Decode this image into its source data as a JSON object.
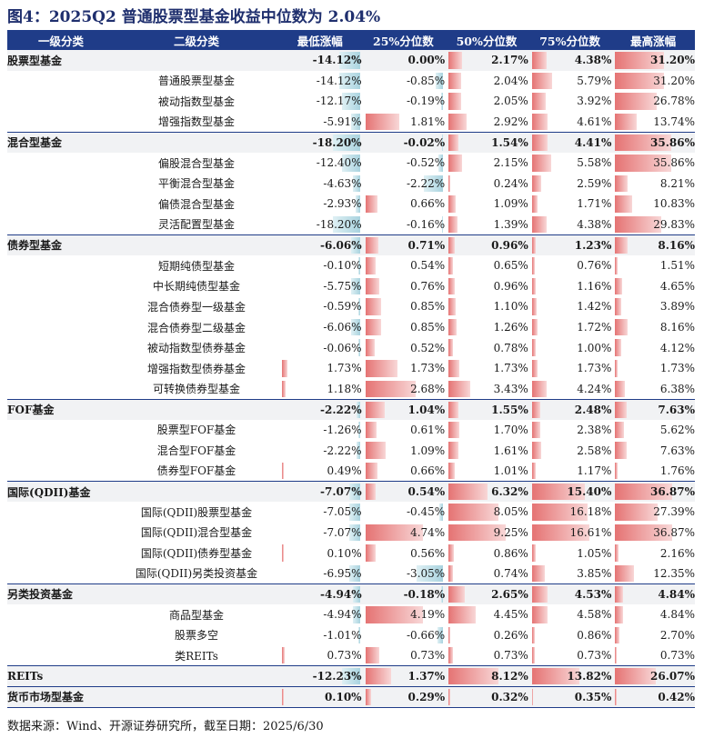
{
  "title": "图4：2025Q2 普通股票型基金收益中位数为 2.04%",
  "source": "数据来源：Wind、开源证券研究所，截至日期：2025/6/30",
  "colors": {
    "header_bg": "#1f3c88",
    "negative_bar": "#a9d3df",
    "positive_bar": "#e57373",
    "group_row_bg": "#f1f2f4"
  },
  "headers": [
    "一级分类",
    "二级分类",
    "最低涨幅",
    "25%分位数",
    "50%分位数",
    "75%分位数",
    "最高涨幅"
  ],
  "rows": [
    {
      "type": "group",
      "l1": "股票型基金",
      "l2": "",
      "values": [
        "-14.12%",
        "0.00%",
        "2.17%",
        "4.38%",
        "31.20%"
      ],
      "nums": [
        -14.12,
        0.0,
        2.17,
        4.38,
        31.2
      ]
    },
    {
      "type": "sub",
      "l1": "",
      "l2": "普通股票型基金",
      "values": [
        "-14.12%",
        "-0.85%",
        "2.04%",
        "5.79%",
        "31.20%"
      ],
      "nums": [
        -14.12,
        -0.85,
        2.04,
        5.79,
        31.2
      ]
    },
    {
      "type": "sub",
      "l1": "",
      "l2": "被动指数型基金",
      "values": [
        "-12.17%",
        "-0.19%",
        "2.05%",
        "3.92%",
        "26.78%"
      ],
      "nums": [
        -12.17,
        -0.19,
        2.05,
        3.92,
        26.78
      ]
    },
    {
      "type": "sub",
      "l1": "",
      "l2": "增强指数型基金",
      "values": [
        "-5.91%",
        "1.81%",
        "2.92%",
        "4.61%",
        "13.74%"
      ],
      "nums": [
        -5.91,
        1.81,
        2.92,
        4.61,
        13.74
      ]
    },
    {
      "type": "group",
      "l1": "混合型基金",
      "l2": "",
      "values": [
        "-18.20%",
        "-0.02%",
        "1.54%",
        "4.41%",
        "35.86%"
      ],
      "nums": [
        -18.2,
        -0.02,
        1.54,
        4.41,
        35.86
      ]
    },
    {
      "type": "sub",
      "l1": "",
      "l2": "偏股混合型基金",
      "values": [
        "-12.40%",
        "-0.52%",
        "2.15%",
        "5.58%",
        "35.86%"
      ],
      "nums": [
        -12.4,
        -0.52,
        2.15,
        5.58,
        35.86
      ]
    },
    {
      "type": "sub",
      "l1": "",
      "l2": "平衡混合型基金",
      "values": [
        "-4.63%",
        "-2.22%",
        "0.24%",
        "2.59%",
        "8.21%"
      ],
      "nums": [
        -4.63,
        -2.22,
        0.24,
        2.59,
        8.21
      ]
    },
    {
      "type": "sub",
      "l1": "",
      "l2": "偏债混合型基金",
      "values": [
        "-2.93%",
        "0.66%",
        "1.09%",
        "1.71%",
        "10.83%"
      ],
      "nums": [
        -2.93,
        0.66,
        1.09,
        1.71,
        10.83
      ]
    },
    {
      "type": "sub",
      "l1": "",
      "l2": "灵活配置型基金",
      "values": [
        "-18.20%",
        "-0.16%",
        "1.39%",
        "4.38%",
        "29.83%"
      ],
      "nums": [
        -18.2,
        -0.16,
        1.39,
        4.38,
        29.83
      ]
    },
    {
      "type": "group",
      "l1": "债券型基金",
      "l2": "",
      "values": [
        "-6.06%",
        "0.71%",
        "0.96%",
        "1.23%",
        "8.16%"
      ],
      "nums": [
        -6.06,
        0.71,
        0.96,
        1.23,
        8.16
      ]
    },
    {
      "type": "sub",
      "l1": "",
      "l2": "短期纯债型基金",
      "values": [
        "-0.10%",
        "0.54%",
        "0.65%",
        "0.76%",
        "1.51%"
      ],
      "nums": [
        -0.1,
        0.54,
        0.65,
        0.76,
        1.51
      ]
    },
    {
      "type": "sub",
      "l1": "",
      "l2": "中长期纯债型基金",
      "values": [
        "-5.75%",
        "0.76%",
        "0.96%",
        "1.16%",
        "4.65%"
      ],
      "nums": [
        -5.75,
        0.76,
        0.96,
        1.16,
        4.65
      ]
    },
    {
      "type": "sub",
      "l1": "",
      "l2": "混合债券型一级基金",
      "values": [
        "-0.59%",
        "0.85%",
        "1.10%",
        "1.42%",
        "3.89%"
      ],
      "nums": [
        -0.59,
        0.85,
        1.1,
        1.42,
        3.89
      ]
    },
    {
      "type": "sub",
      "l1": "",
      "l2": "混合债券型二级基金",
      "values": [
        "-6.06%",
        "0.85%",
        "1.26%",
        "1.72%",
        "8.16%"
      ],
      "nums": [
        -6.06,
        0.85,
        1.26,
        1.72,
        8.16
      ]
    },
    {
      "type": "sub",
      "l1": "",
      "l2": "被动指数型债券基金",
      "values": [
        "-0.06%",
        "0.52%",
        "0.78%",
        "1.00%",
        "4.12%"
      ],
      "nums": [
        -0.06,
        0.52,
        0.78,
        1.0,
        4.12
      ]
    },
    {
      "type": "sub",
      "l1": "",
      "l2": "增强指数型债券基金",
      "values": [
        "1.73%",
        "1.73%",
        "1.73%",
        "1.73%",
        "1.73%"
      ],
      "nums": [
        1.73,
        1.73,
        1.73,
        1.73,
        1.73
      ]
    },
    {
      "type": "sub",
      "l1": "",
      "l2": "可转换债券型基金",
      "values": [
        "1.18%",
        "2.68%",
        "3.43%",
        "4.24%",
        "6.38%"
      ],
      "nums": [
        1.18,
        2.68,
        3.43,
        4.24,
        6.38
      ]
    },
    {
      "type": "group",
      "l1": "FOF基金",
      "l2": "",
      "values": [
        "-2.22%",
        "1.04%",
        "1.55%",
        "2.48%",
        "7.63%"
      ],
      "nums": [
        -2.22,
        1.04,
        1.55,
        2.48,
        7.63
      ]
    },
    {
      "type": "sub",
      "l1": "",
      "l2": "股票型FOF基金",
      "values": [
        "-1.26%",
        "0.61%",
        "1.70%",
        "2.38%",
        "5.62%"
      ],
      "nums": [
        -1.26,
        0.61,
        1.7,
        2.38,
        5.62
      ]
    },
    {
      "type": "sub",
      "l1": "",
      "l2": "混合型FOF基金",
      "values": [
        "-2.22%",
        "1.09%",
        "1.61%",
        "2.58%",
        "7.63%"
      ],
      "nums": [
        -2.22,
        1.09,
        1.61,
        2.58,
        7.63
      ]
    },
    {
      "type": "sub",
      "l1": "",
      "l2": "债券型FOF基金",
      "values": [
        "0.49%",
        "0.66%",
        "1.01%",
        "1.17%",
        "1.76%"
      ],
      "nums": [
        0.49,
        0.66,
        1.01,
        1.17,
        1.76
      ]
    },
    {
      "type": "group",
      "l1": "国际(QDII)基金",
      "l2": "",
      "values": [
        "-7.07%",
        "0.54%",
        "6.32%",
        "15.40%",
        "36.87%"
      ],
      "nums": [
        -7.07,
        0.54,
        6.32,
        15.4,
        36.87
      ]
    },
    {
      "type": "sub",
      "l1": "",
      "l2": "国际(QDII)股票型基金",
      "values": [
        "-7.05%",
        "-0.45%",
        "8.05%",
        "16.18%",
        "27.39%"
      ],
      "nums": [
        -7.05,
        -0.45,
        8.05,
        16.18,
        27.39
      ]
    },
    {
      "type": "sub",
      "l1": "",
      "l2": "国际(QDII)混合型基金",
      "values": [
        "-7.07%",
        "4.74%",
        "9.25%",
        "16.61%",
        "36.87%"
      ],
      "nums": [
        -7.07,
        4.74,
        9.25,
        16.61,
        36.87
      ]
    },
    {
      "type": "sub",
      "l1": "",
      "l2": "国际(QDII)债券型基金",
      "values": [
        "0.10%",
        "0.56%",
        "0.86%",
        "1.05%",
        "2.16%"
      ],
      "nums": [
        0.1,
        0.56,
        0.86,
        1.05,
        2.16
      ]
    },
    {
      "type": "sub",
      "l1": "",
      "l2": "国际(QDII)另类投资基金",
      "values": [
        "-6.95%",
        "-3.05%",
        "0.74%",
        "3.85%",
        "12.35%"
      ],
      "nums": [
        -6.95,
        -3.05,
        0.74,
        3.85,
        12.35
      ]
    },
    {
      "type": "group",
      "l1": "另类投资基金",
      "l2": "",
      "values": [
        "-4.94%",
        "-0.18%",
        "2.65%",
        "4.53%",
        "4.84%"
      ],
      "nums": [
        -4.94,
        -0.18,
        2.65,
        4.53,
        4.84
      ]
    },
    {
      "type": "sub",
      "l1": "",
      "l2": "商品型基金",
      "values": [
        "-4.94%",
        "4.19%",
        "4.45%",
        "4.58%",
        "4.84%"
      ],
      "nums": [
        -4.94,
        4.19,
        4.45,
        4.58,
        4.84
      ]
    },
    {
      "type": "sub",
      "l1": "",
      "l2": "股票多空",
      "values": [
        "-1.01%",
        "-0.66%",
        "0.26%",
        "0.86%",
        "2.70%"
      ],
      "nums": [
        -1.01,
        -0.66,
        0.26,
        0.86,
        2.7
      ]
    },
    {
      "type": "sub",
      "l1": "",
      "l2": "类REITs",
      "values": [
        "0.73%",
        "0.73%",
        "0.73%",
        "0.73%",
        "0.73%"
      ],
      "nums": [
        0.73,
        0.73,
        0.73,
        0.73,
        0.73
      ]
    },
    {
      "type": "group",
      "l1": "REITs",
      "l2": "",
      "values": [
        "-12.23%",
        "1.37%",
        "8.12%",
        "13.82%",
        "26.07%"
      ],
      "nums": [
        -12.23,
        1.37,
        8.12,
        13.82,
        26.07
      ]
    },
    {
      "type": "group",
      "l1": "货币市场型基金",
      "l2": "",
      "values": [
        "0.10%",
        "0.29%",
        "0.32%",
        "0.35%",
        "0.42%"
      ],
      "nums": [
        0.1,
        0.29,
        0.32,
        0.35,
        0.42
      ]
    }
  ]
}
